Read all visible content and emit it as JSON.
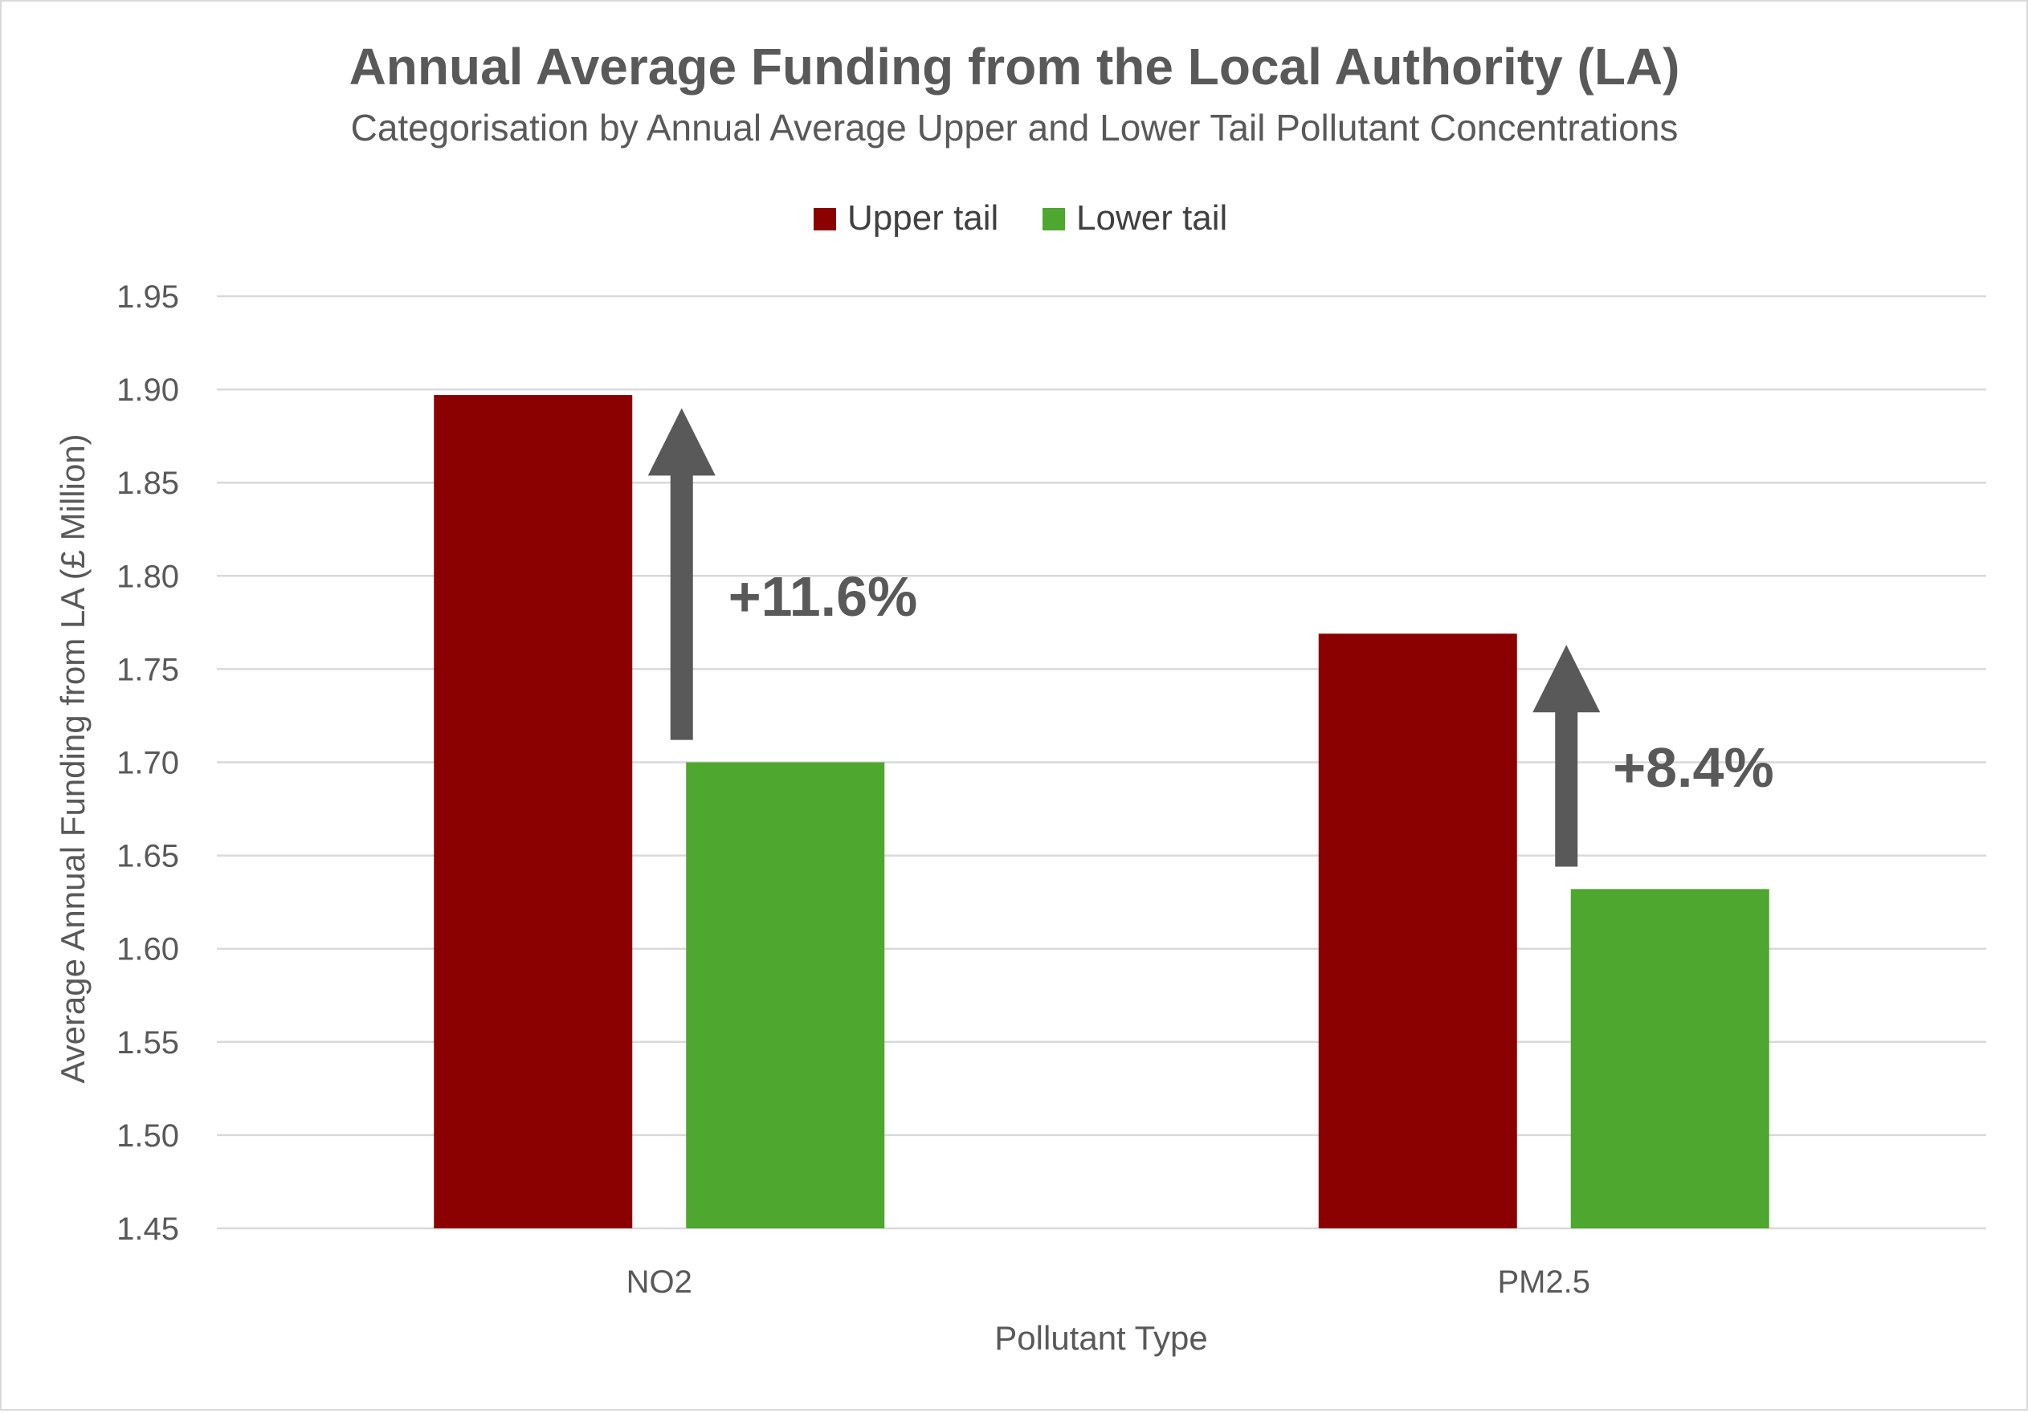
{
  "chart_data": {
    "type": "bar",
    "title": "Annual Average Funding from the Local Authority (LA)",
    "subtitle": "Categorisation by Annual Average Upper and Lower Tail  Pollutant Concentrations",
    "xlabel": "Pollutant Type",
    "ylabel": "Average Annual  Funding from LA (£ Million)",
    "categories": [
      "NO2",
      "PM2.5"
    ],
    "series": [
      {
        "name": "Upper tail",
        "color": "#8b0000",
        "values": [
          1.897,
          1.769
        ]
      },
      {
        "name": "Lower tail",
        "color": "#4ea72e",
        "values": [
          1.7,
          1.632
        ]
      }
    ],
    "ylim": [
      1.45,
      1.95
    ],
    "yticks": [
      "1.45",
      "1.50",
      "1.55",
      "1.60",
      "1.65",
      "1.70",
      "1.75",
      "1.80",
      "1.85",
      "1.90",
      "1.95"
    ],
    "grid": true,
    "legend_position": "top",
    "annotations": [
      {
        "category": "NO2",
        "label": "+11.6%",
        "arrow_from": 1.712,
        "arrow_to": 1.89
      },
      {
        "category": "PM2.5",
        "label": "+8.4%",
        "arrow_from": 1.644,
        "arrow_to": 1.763
      }
    ],
    "annotation_color": "#595959"
  }
}
